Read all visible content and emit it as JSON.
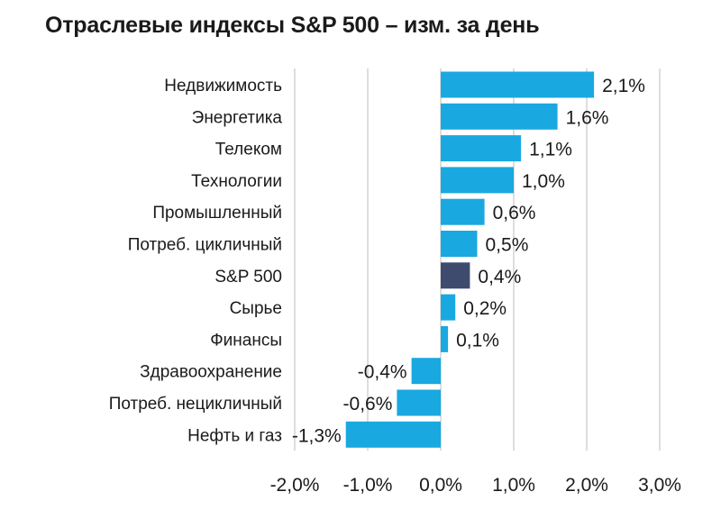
{
  "chart_data": {
    "type": "bar",
    "orientation": "horizontal",
    "title": "Отраслевые индексы S&P 500 – изм. за день",
    "xlabel": "",
    "ylabel": "",
    "xlim": [
      -2.0,
      3.0
    ],
    "grid": true,
    "categories": [
      "Недвижимость",
      "Энергетика",
      "Телеком",
      "Технологии",
      "Промышленный",
      "Потреб. цикличный",
      "S&P 500",
      "Сырье",
      "Финансы",
      "Здравоохранение",
      "Потреб. нецикличный",
      "Нефть и газ"
    ],
    "values": [
      2.1,
      1.6,
      1.1,
      1.0,
      0.6,
      0.5,
      0.4,
      0.2,
      0.1,
      -0.4,
      -0.6,
      -1.3
    ],
    "value_labels": [
      "2,1%",
      "1,6%",
      "1,1%",
      "1,0%",
      "0,6%",
      "0,5%",
      "0,4%",
      "0,2%",
      "0,1%",
      "-0,4%",
      "-0,6%",
      "-1,3%"
    ],
    "tick_values": [
      -2.0,
      -1.0,
      0.0,
      1.0,
      2.0,
      3.0
    ],
    "tick_labels": [
      "-2,0%",
      "-1,0%",
      "0,0%",
      "1,0%",
      "2,0%",
      "3,0%"
    ],
    "colors": {
      "bar": "#1aa8e0",
      "highlight": "#3f4b6e",
      "grid": "#c8c8c8"
    },
    "highlight_category": "S&P 500"
  }
}
